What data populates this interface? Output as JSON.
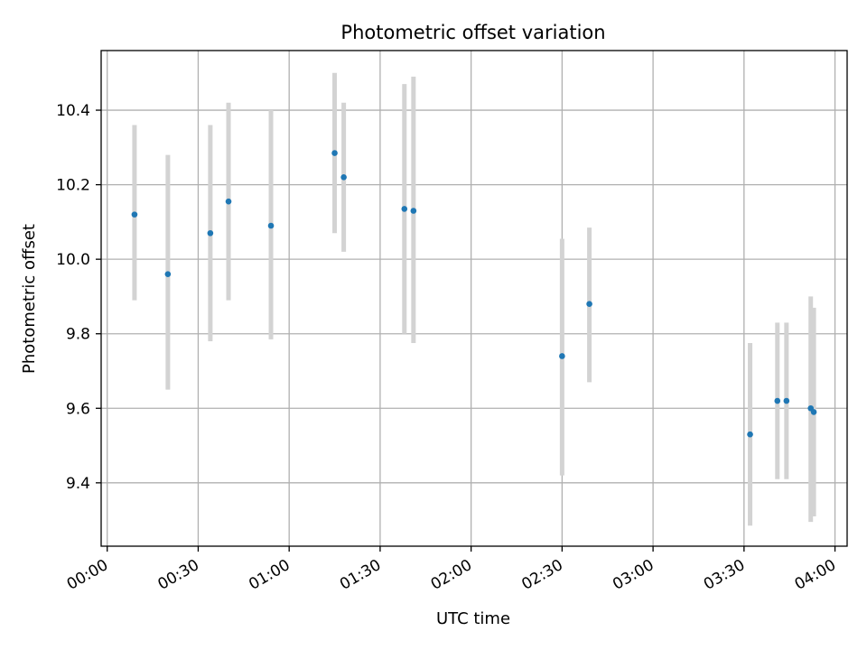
{
  "chart_data": {
    "type": "scatter",
    "title": "Photometric offset variation",
    "xlabel": "UTC time",
    "ylabel": "Photometric offset",
    "xlim": [
      "23:58",
      "04:04"
    ],
    "ylim": [
      9.23,
      10.56
    ],
    "x_ticks": [
      "00:00",
      "00:30",
      "01:00",
      "01:30",
      "02:00",
      "02:30",
      "03:00",
      "03:30",
      "04:00"
    ],
    "y_ticks": [
      "9.4",
      "9.6",
      "9.8",
      "10.0",
      "10.2",
      "10.4"
    ],
    "grid": true,
    "colors": {
      "point": "#1f77b4",
      "errorbar": "#d3d3d3",
      "grid": "#b0b0b0"
    },
    "series": [
      {
        "points": [
          {
            "x": "00:09",
            "y": 10.12,
            "ylow": 9.89,
            "yhigh": 10.36
          },
          {
            "x": "00:20",
            "y": 9.96,
            "ylow": 9.65,
            "yhigh": 10.28
          },
          {
            "x": "00:34",
            "y": 10.07,
            "ylow": 9.78,
            "yhigh": 10.36
          },
          {
            "x": "00:40",
            "y": 10.155,
            "ylow": 9.89,
            "yhigh": 10.42
          },
          {
            "x": "00:54",
            "y": 10.09,
            "ylow": 9.785,
            "yhigh": 10.4
          },
          {
            "x": "01:15",
            "y": 10.285,
            "ylow": 10.07,
            "yhigh": 10.5
          },
          {
            "x": "01:18",
            "y": 10.22,
            "ylow": 10.02,
            "yhigh": 10.42
          },
          {
            "x": "01:38",
            "y": 10.135,
            "ylow": 9.8,
            "yhigh": 10.47
          },
          {
            "x": "01:41",
            "y": 10.13,
            "ylow": 9.775,
            "yhigh": 10.49
          },
          {
            "x": "02:30",
            "y": 9.74,
            "ylow": 9.42,
            "yhigh": 10.055
          },
          {
            "x": "02:39",
            "y": 9.88,
            "ylow": 9.67,
            "yhigh": 10.085
          },
          {
            "x": "03:32",
            "y": 9.53,
            "ylow": 9.285,
            "yhigh": 9.775
          },
          {
            "x": "03:41",
            "y": 9.62,
            "ylow": 9.41,
            "yhigh": 9.83
          },
          {
            "x": "03:44",
            "y": 9.62,
            "ylow": 9.41,
            "yhigh": 9.83
          },
          {
            "x": "03:52",
            "y": 9.6,
            "ylow": 9.295,
            "yhigh": 9.9
          },
          {
            "x": "03:53",
            "y": 9.59,
            "ylow": 9.31,
            "yhigh": 9.87
          }
        ]
      }
    ]
  }
}
